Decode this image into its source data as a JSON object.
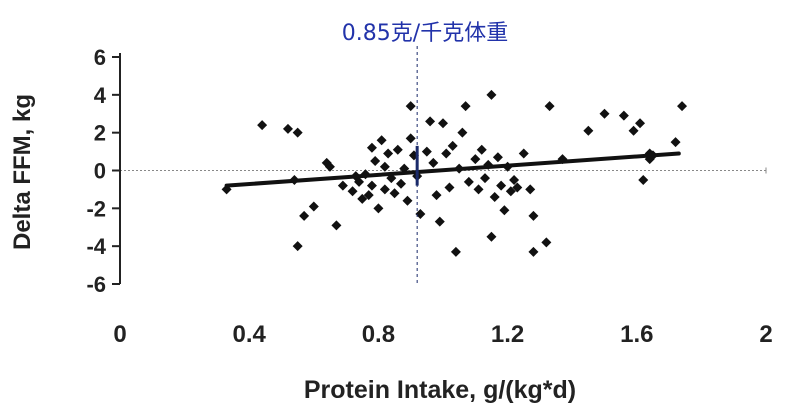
{
  "chart_data": {
    "type": "scatter",
    "xlabel": "Protein Intake, g/(kg*d)",
    "ylabel": "Delta FFM, kg",
    "xlim": [
      0,
      2
    ],
    "ylim": [
      -6,
      6
    ],
    "x_ticks": [
      0,
      0.4,
      0.8,
      1.2,
      1.6,
      2
    ],
    "x_tick_labels": [
      "0",
      "0.4",
      "0.8",
      "1.2",
      "1.6",
      "2"
    ],
    "y_ticks": [
      6,
      4,
      2,
      0,
      -2,
      -4,
      -6
    ],
    "y_tick_labels": [
      "6",
      "4",
      "2",
      "0",
      "-2",
      "-4",
      "-6"
    ],
    "points": [
      {
        "x": 0.33,
        "y": -1.0
      },
      {
        "x": 0.44,
        "y": 2.4
      },
      {
        "x": 0.52,
        "y": 2.2
      },
      {
        "x": 0.55,
        "y": 2.0
      },
      {
        "x": 0.54,
        "y": -0.5
      },
      {
        "x": 0.55,
        "y": -4.0
      },
      {
        "x": 0.57,
        "y": -2.4
      },
      {
        "x": 0.6,
        "y": -1.9
      },
      {
        "x": 0.64,
        "y": 0.4
      },
      {
        "x": 0.65,
        "y": 0.2
      },
      {
        "x": 0.67,
        "y": -2.9
      },
      {
        "x": 0.69,
        "y": -0.8
      },
      {
        "x": 0.72,
        "y": -1.1
      },
      {
        "x": 0.73,
        "y": -0.3
      },
      {
        "x": 0.74,
        "y": -0.6
      },
      {
        "x": 0.75,
        "y": -1.5
      },
      {
        "x": 0.76,
        "y": -0.2
      },
      {
        "x": 0.77,
        "y": -1.3
      },
      {
        "x": 0.78,
        "y": 1.2
      },
      {
        "x": 0.78,
        "y": -0.8
      },
      {
        "x": 0.79,
        "y": 0.5
      },
      {
        "x": 0.8,
        "y": -2.0
      },
      {
        "x": 0.81,
        "y": 1.6
      },
      {
        "x": 0.82,
        "y": 0.2
      },
      {
        "x": 0.82,
        "y": -1.0
      },
      {
        "x": 0.83,
        "y": 0.9
      },
      {
        "x": 0.84,
        "y": -0.4
      },
      {
        "x": 0.85,
        "y": -1.2
      },
      {
        "x": 0.86,
        "y": 1.1
      },
      {
        "x": 0.87,
        "y": -0.7
      },
      {
        "x": 0.88,
        "y": 0.1
      },
      {
        "x": 0.89,
        "y": -1.6
      },
      {
        "x": 0.9,
        "y": 1.7
      },
      {
        "x": 0.9,
        "y": 3.4
      },
      {
        "x": 0.91,
        "y": 0.8
      },
      {
        "x": 0.92,
        "y": -0.3
      },
      {
        "x": 0.93,
        "y": -2.3
      },
      {
        "x": 0.95,
        "y": 1.0
      },
      {
        "x": 0.96,
        "y": 2.6
      },
      {
        "x": 0.97,
        "y": 0.4
      },
      {
        "x": 0.98,
        "y": -1.3
      },
      {
        "x": 0.99,
        "y": -2.7
      },
      {
        "x": 1.0,
        "y": 2.5
      },
      {
        "x": 1.01,
        "y": 0.9
      },
      {
        "x": 1.02,
        "y": -0.9
      },
      {
        "x": 1.03,
        "y": 1.3
      },
      {
        "x": 1.04,
        "y": -4.3
      },
      {
        "x": 1.05,
        "y": 0.1
      },
      {
        "x": 1.06,
        "y": 2.0
      },
      {
        "x": 1.07,
        "y": 3.4
      },
      {
        "x": 1.08,
        "y": -0.6
      },
      {
        "x": 1.1,
        "y": 0.6
      },
      {
        "x": 1.11,
        "y": -1.0
      },
      {
        "x": 1.12,
        "y": 1.1
      },
      {
        "x": 1.13,
        "y": -0.4
      },
      {
        "x": 1.14,
        "y": 0.3
      },
      {
        "x": 1.15,
        "y": 4.0
      },
      {
        "x": 1.15,
        "y": -3.5
      },
      {
        "x": 1.16,
        "y": -1.4
      },
      {
        "x": 1.17,
        "y": 0.7
      },
      {
        "x": 1.18,
        "y": -0.8
      },
      {
        "x": 1.19,
        "y": -2.1
      },
      {
        "x": 1.2,
        "y": 0.2
      },
      {
        "x": 1.21,
        "y": -1.1
      },
      {
        "x": 1.22,
        "y": -0.5
      },
      {
        "x": 1.23,
        "y": -0.9
      },
      {
        "x": 1.25,
        "y": 0.9
      },
      {
        "x": 1.27,
        "y": -1.0
      },
      {
        "x": 1.28,
        "y": -2.4
      },
      {
        "x": 1.28,
        "y": -4.3
      },
      {
        "x": 1.32,
        "y": -3.8
      },
      {
        "x": 1.33,
        "y": 3.4
      },
      {
        "x": 1.37,
        "y": 0.6
      },
      {
        "x": 1.45,
        "y": 2.1
      },
      {
        "x": 1.5,
        "y": 3.0
      },
      {
        "x": 1.56,
        "y": 2.9
      },
      {
        "x": 1.59,
        "y": 2.1
      },
      {
        "x": 1.61,
        "y": 2.5
      },
      {
        "x": 1.62,
        "y": -0.5
      },
      {
        "x": 1.64,
        "y": 0.9
      },
      {
        "x": 1.64,
        "y": 0.6
      },
      {
        "x": 1.65,
        "y": 0.8
      },
      {
        "x": 1.72,
        "y": 1.5
      },
      {
        "x": 1.74,
        "y": 3.4
      }
    ],
    "trendline": {
      "x": [
        0.33,
        1.73
      ],
      "y": [
        -0.8,
        0.9
      ]
    },
    "reference_line": {
      "x": 0.92,
      "label": "0.85克/千克体重"
    },
    "colors": {
      "points": "#111111",
      "annotation": "#2233aa",
      "axis": "#222222"
    }
  }
}
